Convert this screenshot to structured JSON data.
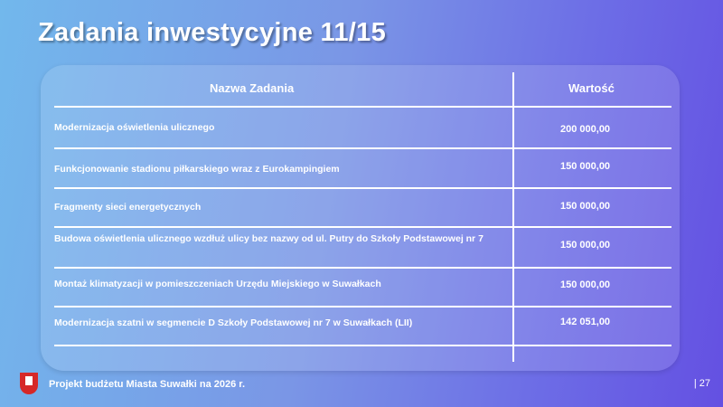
{
  "title": "Zadania inwestycyjne 11/15",
  "table": {
    "headers": [
      "Nazwa Zadania",
      "Wartość"
    ],
    "rows": [
      {
        "name": "Modernizacja oświetlenia ulicznego",
        "value": "200 000,00"
      },
      {
        "name": "Funkcjonowanie stadionu piłkarskiego wraz z Eurokampingiem",
        "value": "150 000,00"
      },
      {
        "name": "Fragmenty sieci energetycznych",
        "value": "150 000,00"
      },
      {
        "name": "Budowa oświetlenia ulicznego wzdłuż ulicy bez nazwy od ul. Putry do Szkoły Podstawowej nr 7",
        "value": "150 000,00"
      },
      {
        "name": "Montaż klimatyzacji w pomieszczeniach Urzędu Miejskiego w Suwałkach",
        "value": "150 000,00"
      },
      {
        "name": "Modernizacja szatni w segmencie D Szkoły Podstawowej nr 7 w Suwałkach (LII)",
        "value": "142 051,00"
      }
    ]
  },
  "footer": {
    "text": "Projekt budżetu Miasta Suwałki na 2026 r.",
    "page": "| 27",
    "logo": "suwalki-coat-of-arms"
  }
}
